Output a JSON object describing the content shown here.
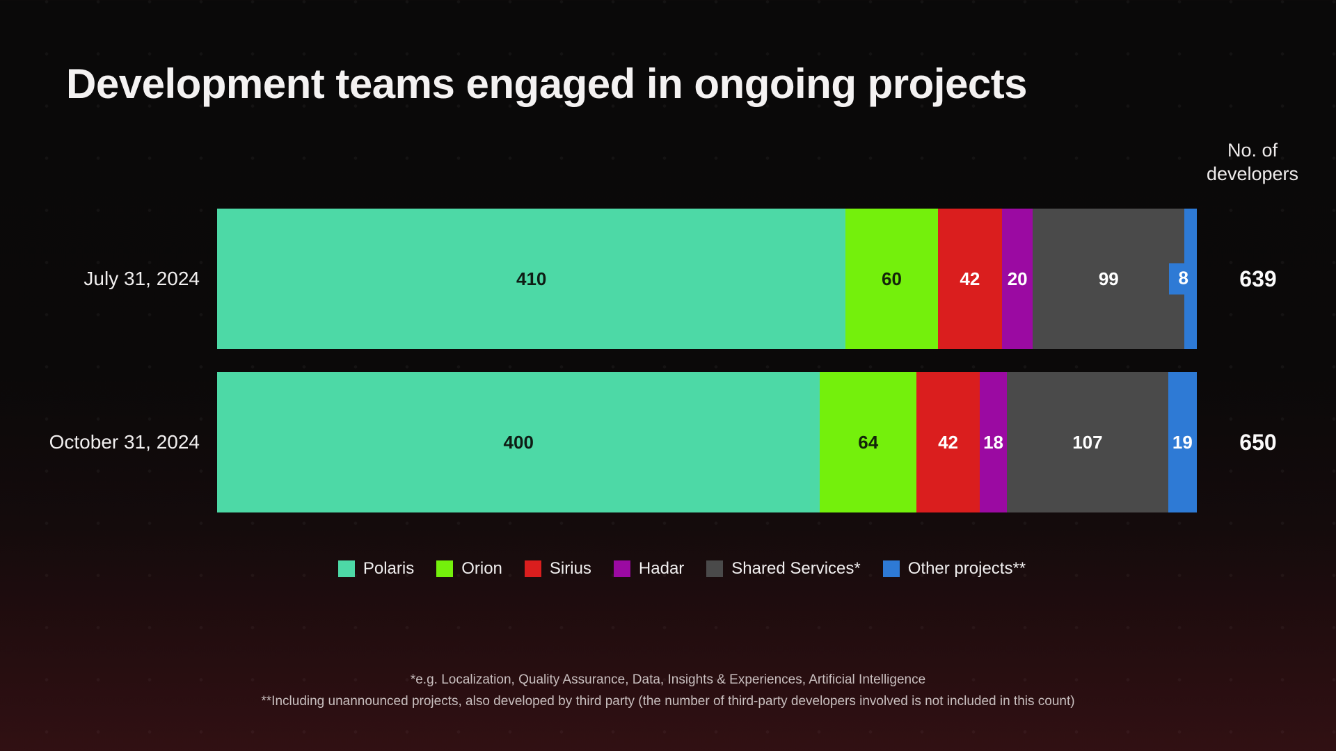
{
  "title": "Development teams engaged in ongoing projects",
  "axis_note": {
    "line1": "No. of",
    "line2": "developers"
  },
  "chart_data": {
    "type": "bar",
    "orientation": "horizontal-stacked",
    "title": "Development teams engaged in ongoing projects",
    "value_axis_label": "No. of developers",
    "legend_position": "bottom",
    "grid": false,
    "categories": [
      "July 31, 2024",
      "October 31, 2024"
    ],
    "totals": [
      639,
      650
    ],
    "series": [
      {
        "name": "Polaris",
        "color": "#4dd9a6",
        "label_color": "#0e1d15",
        "values": [
          410,
          400
        ]
      },
      {
        "name": "Orion",
        "color": "#74f00c",
        "label_color": "#13240a",
        "values": [
          60,
          64
        ]
      },
      {
        "name": "Sirius",
        "color": "#da1e1e",
        "label_color": "#ffffff",
        "values": [
          42,
          42
        ]
      },
      {
        "name": "Hadar",
        "color": "#9b0aa2",
        "label_color": "#ffffff",
        "values": [
          20,
          18
        ]
      },
      {
        "name": "Shared Services*",
        "color": "#4a4a4a",
        "label_color": "#ffffff",
        "values": [
          99,
          107
        ]
      },
      {
        "name": "Other projects**",
        "color": "#2e7ad5",
        "label_color": "#ffffff",
        "values": [
          8,
          19
        ]
      }
    ]
  },
  "footnotes": [
    "*e.g. Localization, Quality Assurance, Data, Insights & Experiences, Artificial Intelligence",
    "**Including unannounced projects, also developed by third party (the number of third-party developers involved is not included in this count)"
  ],
  "colors": {
    "background_top": "#0a0909",
    "background_bottom": "#311013",
    "title_text": "#f4f2f2",
    "footnote_text": "#c9bfbf"
  }
}
